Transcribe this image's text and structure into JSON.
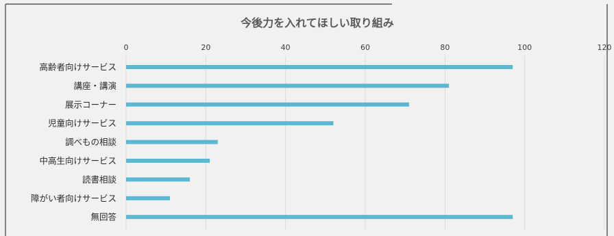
{
  "chart_data": {
    "type": "bar",
    "orientation": "horizontal",
    "title": "今後力を入れてほしい取り組み",
    "xlabel": "",
    "ylabel": "",
    "xlim": [
      0,
      120
    ],
    "x_ticks": [
      0,
      20,
      40,
      60,
      80,
      100,
      120
    ],
    "x_axis_position": "top",
    "grid": true,
    "legend": "none",
    "categories": [
      "高齢者向けサービス",
      "講座・講演",
      "展示コーナー",
      "児童向けサービス",
      "調べもの相談",
      "中高生向けサービス",
      "読書相談",
      "障がい者向けサービス",
      "無回答"
    ],
    "values": [
      97,
      81,
      71,
      52,
      23,
      21,
      16,
      11,
      97
    ],
    "colors": {
      "bar": "#5ab8d2",
      "text": "#2b2b2b",
      "title": "#5a5a5a",
      "grid": "#d6d6d4",
      "frame": "#3a3a3a"
    }
  }
}
